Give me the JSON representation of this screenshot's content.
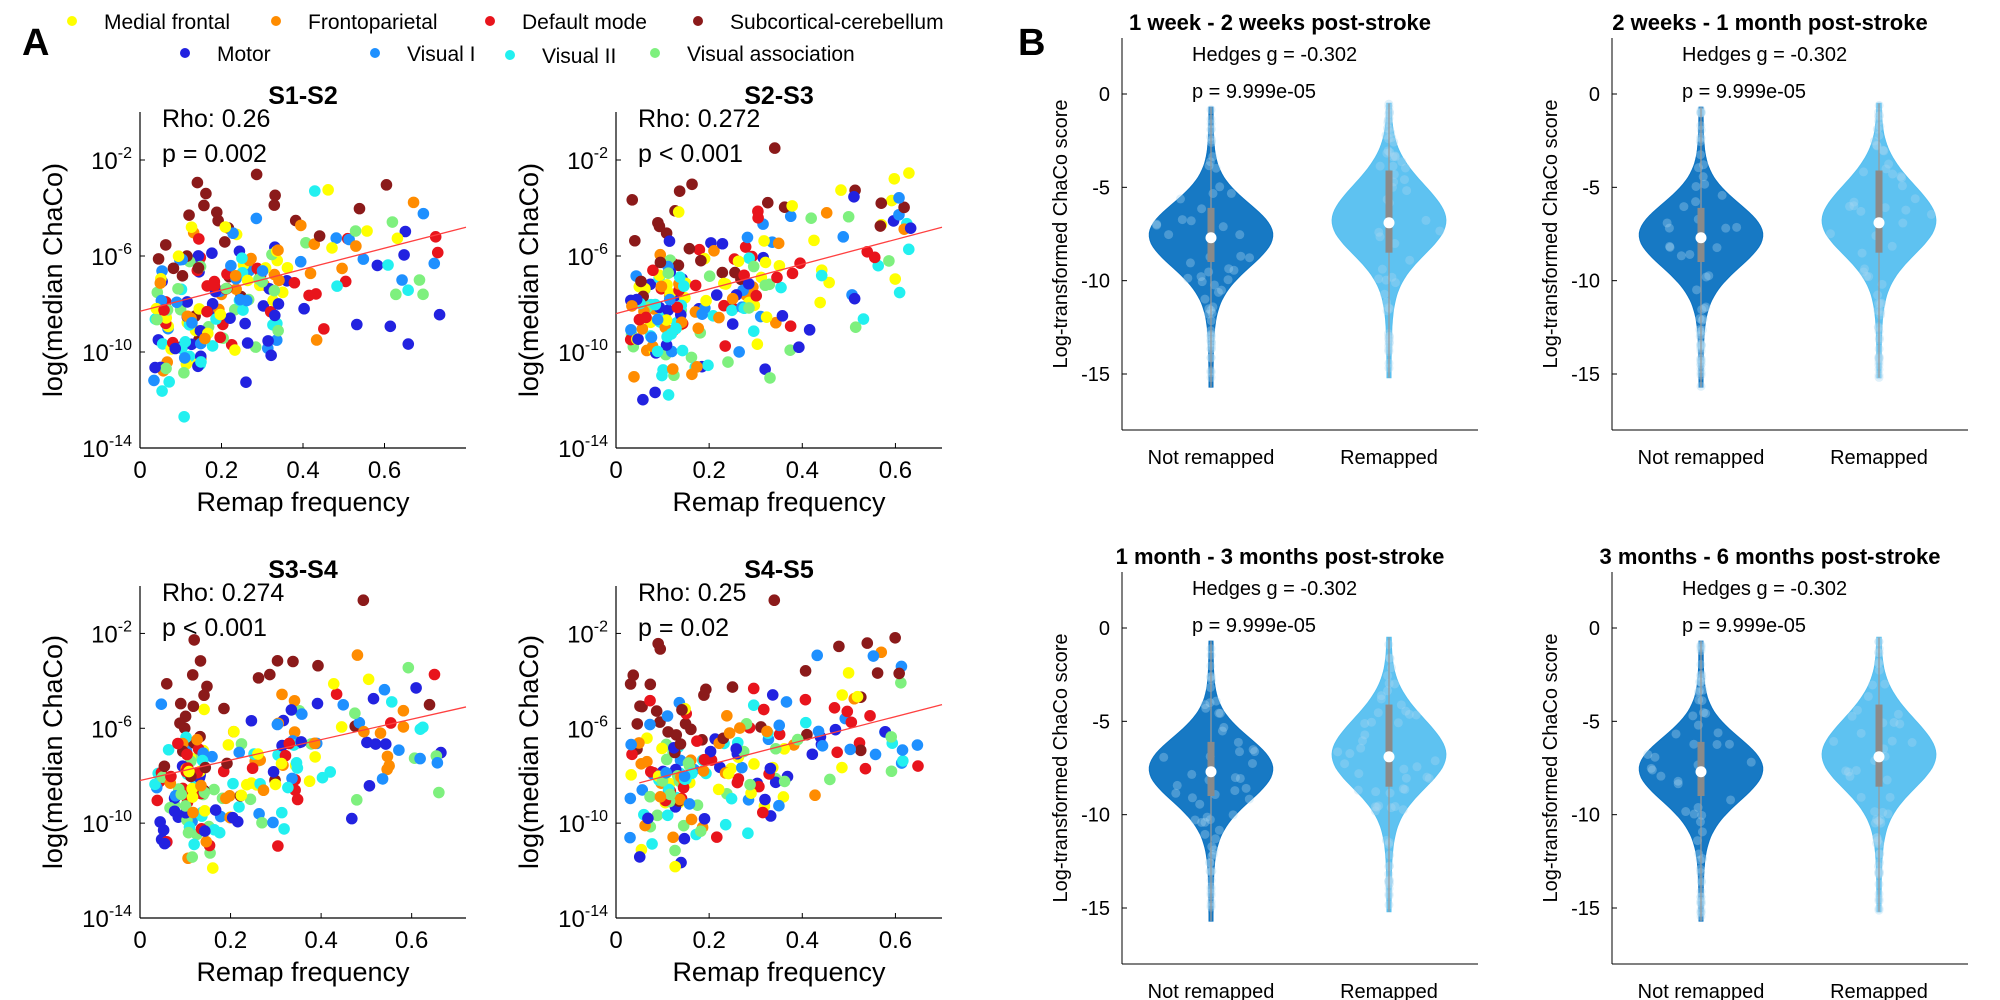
{
  "panel_labels": {
    "a": "A",
    "b": "B"
  },
  "legend": [
    {
      "label": "Medial frontal",
      "color": "#ffff00"
    },
    {
      "label": "Frontoparietal",
      "color": "#ff8c00"
    },
    {
      "label": "Default mode",
      "color": "#e8141c"
    },
    {
      "label": "Subcortical-cerebellum",
      "color": "#8b1a1a"
    },
    {
      "label": "Motor",
      "color": "#2222e0"
    },
    {
      "label": "Visual I",
      "color": "#1e90ff"
    },
    {
      "label": "Visual II",
      "color": "#22f0f0"
    },
    {
      "label": "Visual association",
      "color": "#7ef07e"
    }
  ],
  "chart_data": [
    {
      "type": "scatter",
      "title": "S1-S2",
      "rho_text": "Rho: 0.26",
      "p_text": "p = 0.002",
      "xlabel": "Remap frequency",
      "ylabel": "log(median ChaCo)",
      "xlim": [
        0,
        0.8
      ],
      "ylog_lim": [
        -14,
        0
      ],
      "xticks": [
        "0",
        "0.2",
        "0.4",
        "0.6"
      ],
      "yticks": [
        -14,
        -10,
        -6,
        -2
      ],
      "trend": {
        "x0": 0,
        "y0": -8.3,
        "x1": 0.8,
        "y1": -4.8
      },
      "seed": 11
    },
    {
      "type": "scatter",
      "title": "S2-S3",
      "rho_text": "Rho: 0.272",
      "p_text": "p < 0.001",
      "xlabel": "Remap frequency",
      "ylabel": "log(median ChaCo)",
      "xlim": [
        0,
        0.7
      ],
      "ylog_lim": [
        -14,
        0
      ],
      "xticks": [
        "0",
        "0.2",
        "0.4",
        "0.6"
      ],
      "yticks": [
        -14,
        -10,
        -6,
        -2
      ],
      "trend": {
        "x0": 0,
        "y0": -8.4,
        "x1": 0.7,
        "y1": -4.8
      },
      "seed": 23
    },
    {
      "type": "scatter",
      "title": "S3-S4",
      "rho_text": "Rho: 0.274",
      "p_text": "p < 0.001",
      "xlabel": "Remap frequency",
      "ylabel": "log(median ChaCo)",
      "xlim": [
        0,
        0.72
      ],
      "ylog_lim": [
        -14,
        0
      ],
      "xticks": [
        "0",
        "0.2",
        "0.4",
        "0.6"
      ],
      "yticks": [
        -14,
        -10,
        -6,
        -2
      ],
      "trend": {
        "x0": 0,
        "y0": -8.2,
        "x1": 0.72,
        "y1": -5.1
      },
      "seed": 37
    },
    {
      "type": "scatter",
      "title": "S4-S5",
      "rho_text": "Rho: 0.25",
      "p_text": "p = 0.02",
      "xlabel": "Remap frequency",
      "ylabel": "log(median ChaCo)",
      "xlim": [
        0,
        0.7
      ],
      "ylog_lim": [
        -14,
        0
      ],
      "xticks": [
        "0",
        "0.2",
        "0.4",
        "0.6"
      ],
      "yticks": [
        -14,
        -10,
        -6,
        -2
      ],
      "trend": {
        "x0": 0.05,
        "y0": -8.3,
        "x1": 0.7,
        "y1": -5.0
      },
      "seed": 51
    },
    {
      "type": "violin",
      "title": "1 week - 2 weeks post-stroke",
      "hedges_text": "Hedges g = -0.302",
      "p_text": "p = 9.999e-05",
      "ylabel": "Log-transformed ChaCo score",
      "categories": [
        "Not remapped",
        "Remapped"
      ],
      "ylim": [
        -18,
        3
      ],
      "yticks": [
        0,
        -5,
        -10,
        -15
      ],
      "medians": [
        -7.7,
        -6.9
      ],
      "q1": [
        -9.0,
        -8.5
      ],
      "q3": [
        -6.1,
        -4.1
      ],
      "mins": [
        -15.7,
        -15.2
      ],
      "maxs": [
        -0.7,
        -0.5
      ],
      "seed": 3
    },
    {
      "type": "violin",
      "title": "2 weeks - 1 month post-stroke",
      "hedges_text": "Hedges g = -0.302",
      "p_text": "p = 9.999e-05",
      "ylabel": "Log-transformed ChaCo score",
      "categories": [
        "Not remapped",
        "Remapped"
      ],
      "ylim": [
        -18,
        3
      ],
      "yticks": [
        0,
        -5,
        -10,
        -15
      ],
      "medians": [
        -7.7,
        -6.9
      ],
      "q1": [
        -9.0,
        -8.5
      ],
      "q3": [
        -6.1,
        -4.1
      ],
      "mins": [
        -15.7,
        -15.2
      ],
      "maxs": [
        -0.7,
        -0.5
      ],
      "seed": 5
    },
    {
      "type": "violin",
      "title": "1 month - 3 months post-stroke",
      "hedges_text": "Hedges g = -0.302",
      "p_text": "p = 9.999e-05",
      "ylabel": "Log-transformed ChaCo score",
      "categories": [
        "Not remapped",
        "Remapped"
      ],
      "ylim": [
        -18,
        3
      ],
      "yticks": [
        0,
        -5,
        -10,
        -15
      ],
      "medians": [
        -7.7,
        -6.9
      ],
      "q1": [
        -9.0,
        -8.5
      ],
      "q3": [
        -6.1,
        -4.1
      ],
      "mins": [
        -15.7,
        -15.2
      ],
      "maxs": [
        -0.7,
        -0.5
      ],
      "seed": 7
    },
    {
      "type": "violin",
      "title": "3 months - 6 months post-stroke",
      "hedges_text": "Hedges g = -0.302",
      "p_text": "p = 9.999e-05",
      "ylabel": "Log-transformed ChaCo score",
      "categories": [
        "Not remapped",
        "Remapped"
      ],
      "ylim": [
        -18,
        3
      ],
      "yticks": [
        0,
        -5,
        -10,
        -15
      ],
      "medians": [
        -7.7,
        -6.9
      ],
      "q1": [
        -9.0,
        -8.5
      ],
      "q3": [
        -6.1,
        -4.1
      ],
      "mins": [
        -15.7,
        -15.2
      ],
      "maxs": [
        -0.7,
        -0.5
      ],
      "seed": 9
    }
  ]
}
